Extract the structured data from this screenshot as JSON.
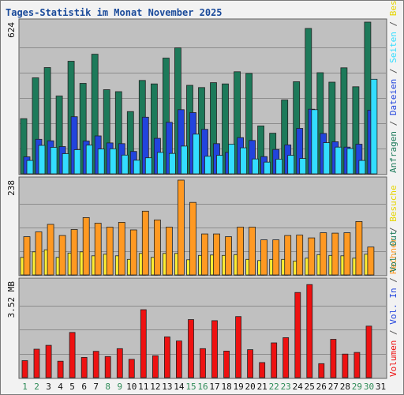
{
  "chart_data": {
    "type": "bar",
    "title": "Tages-Statistik im Monat November 2025",
    "days": [
      "1",
      "2",
      "3",
      "4",
      "5",
      "6",
      "7",
      "8",
      "9",
      "10",
      "11",
      "12",
      "13",
      "14",
      "15",
      "16",
      "17",
      "18",
      "19",
      "20",
      "21",
      "22",
      "23",
      "24",
      "25",
      "26",
      "27",
      "28",
      "29",
      "30",
      "31"
    ],
    "weekend_days": [
      "1",
      "2",
      "8",
      "9",
      "15",
      "16",
      "22",
      "23",
      "29",
      "30"
    ],
    "colors": {
      "title": "#1a4a9a",
      "weekday": "#111111",
      "weekend": "#2e8b57",
      "anfragen": "#1d7a5a",
      "dateien": "#2244dd",
      "seiten": "#33ddff",
      "besuche": "#ffee33",
      "rechner": "#ff9922",
      "volumen": "#ee1111",
      "vol_in": "#2244dd",
      "vol_out": "#1d7a5a"
    },
    "panels": [
      {
        "ymax_label": "624",
        "ymax": 624,
        "side_labels": [
          {
            "text": "Anfragen",
            "color": "#1d7a5a"
          },
          {
            "text": " / ",
            "color": "#555555"
          },
          {
            "text": "Dateien",
            "color": "#2244dd"
          },
          {
            "text": " / ",
            "color": "#555555"
          },
          {
            "text": "Seiten",
            "color": "#33ddff"
          },
          {
            "text": " / ",
            "color": "#555555"
          },
          {
            "text": "Besuche",
            "color": "#e6d500"
          }
        ],
        "series": [
          {
            "name": "Anfragen",
            "color": "#1d7a5a",
            "values": [
              227,
              395,
              437,
              320,
              463,
              372,
              492,
              346,
              338,
              256,
              384,
              370,
              476,
              518,
              364,
              355,
              375,
              370,
              420,
              413,
              197,
              167,
              304,
              379,
              598,
              416,
              377,
              436,
              358,
              624
            ]
          },
          {
            "name": "Dateien",
            "color": "#2244dd",
            "values": [
              70,
              142,
              136,
              112,
              235,
              135,
              156,
              127,
              124,
              92,
              233,
              146,
              212,
              264,
              252,
              183,
              124,
              88,
              149,
              137,
              71,
              100,
              119,
              187,
              266,
              166,
              132,
              110,
              122,
              262
            ]
          },
          {
            "name": "Seiten",
            "color": "#33ddff",
            "values": [
              55,
              117,
              109,
              83,
              99,
              118,
              102,
              103,
              77,
              56,
              66,
              88,
              84,
              114,
              163,
              72,
              76,
              122,
              107,
              61,
              48,
              60,
              76,
              63,
              264,
              128,
              110,
              104,
              55,
              389
            ]
          }
        ]
      },
      {
        "ymax_label": "238",
        "ymax": 238,
        "side_labels": [
          {
            "text": "Rechner",
            "color": "#ff9922"
          },
          {
            "text": " / ",
            "color": "#555555"
          },
          {
            "text": "Besuche",
            "color": "#e6d500"
          }
        ],
        "series": [
          {
            "name": "Besuche",
            "color": "#ffee33",
            "values": [
              44,
              58,
              63,
              44,
              55,
              58,
              48,
              52,
              48,
              39,
              54,
              44,
              54,
              54,
              38,
              49,
              50,
              49,
              51,
              39,
              36,
              39,
              39,
              35,
              42,
              51,
              49,
              48,
              42,
              52
            ]
          },
          {
            "name": "Rechner",
            "color": "#ff9922",
            "values": [
              96,
              108,
              127,
              99,
              114,
              144,
              130,
              120,
              132,
              113,
              160,
              138,
              120,
              238,
              182,
              103,
              103,
              96,
              120,
              120,
              88,
              88,
              99,
              100,
              93,
              106,
              105,
              106,
              134,
              70
            ]
          }
        ]
      },
      {
        "ymax_label": "3.52 MB",
        "ymax": 3.52,
        "side_labels": [
          {
            "text": "Volumen",
            "color": "#ee1111"
          },
          {
            "text": " / ",
            "color": "#555555"
          },
          {
            "text": "Vol. In",
            "color": "#2244dd"
          },
          {
            "text": " / ",
            "color": "#555555"
          },
          {
            "text": "Vol. Out",
            "color": "#1d7a5a"
          }
        ],
        "series": [
          {
            "name": "Volumen",
            "color": "#ee1111",
            "values": [
              0.62,
              1.04,
              1.18,
              0.6,
              1.65,
              0.74,
              0.96,
              0.77,
              1.06,
              0.67,
              2.48,
              0.8,
              1.49,
              1.34,
              2.12,
              1.06,
              2.08,
              0.97,
              2.23,
              1.02,
              0.55,
              1.27,
              1.46,
              3.11,
              3.4,
              0.51,
              1.4,
              0.86,
              0.92,
              1.88
            ]
          }
        ]
      }
    ]
  }
}
